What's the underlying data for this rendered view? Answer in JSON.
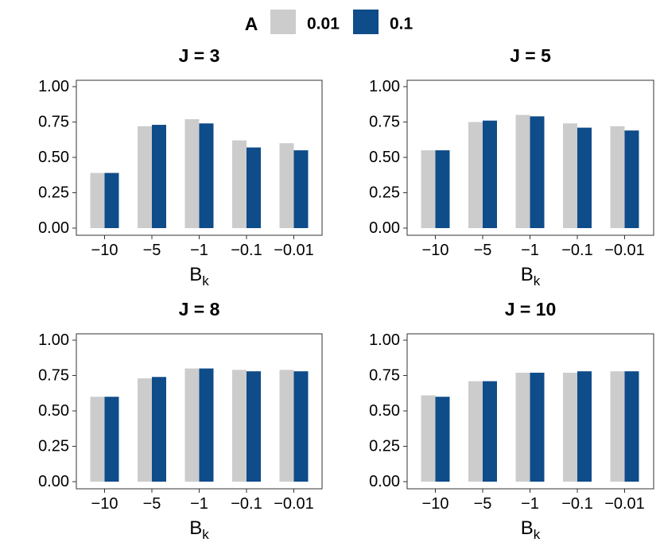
{
  "legend": {
    "title": "A",
    "items": [
      {
        "label": "0.01",
        "color": "#cccccc"
      },
      {
        "label": "0.1",
        "color": "#0f4c8a"
      }
    ],
    "placement": "top"
  },
  "chart_data": [
    {
      "type": "bar",
      "title": "J = 3",
      "categories": [
        "−10",
        "−5",
        "−1",
        "−0.1",
        "−0.01"
      ],
      "xlabel": "B",
      "xlabel_sub": "k",
      "ylabel": "",
      "ylim": [
        0,
        1
      ],
      "yticks": [
        "0.00",
        "0.25",
        "0.50",
        "0.75",
        "1.00"
      ],
      "series": [
        {
          "name": "0.01",
          "values": [
            0.39,
            0.72,
            0.77,
            0.62,
            0.6
          ]
        },
        {
          "name": "0.1",
          "values": [
            0.39,
            0.73,
            0.74,
            0.57,
            0.55
          ]
        }
      ],
      "grid": false
    },
    {
      "type": "bar",
      "title": "J = 5",
      "categories": [
        "−10",
        "−5",
        "−1",
        "−0.1",
        "−0.01"
      ],
      "xlabel": "B",
      "xlabel_sub": "k",
      "ylabel": "",
      "ylim": [
        0,
        1
      ],
      "yticks": [
        "0.00",
        "0.25",
        "0.50",
        "0.75",
        "1.00"
      ],
      "series": [
        {
          "name": "0.01",
          "values": [
            0.55,
            0.75,
            0.8,
            0.74,
            0.72
          ]
        },
        {
          "name": "0.1",
          "values": [
            0.55,
            0.76,
            0.79,
            0.71,
            0.69
          ]
        }
      ],
      "grid": false
    },
    {
      "type": "bar",
      "title": "J = 8",
      "categories": [
        "−10",
        "−5",
        "−1",
        "−0.1",
        "−0.01"
      ],
      "xlabel": "B",
      "xlabel_sub": "k",
      "ylabel": "",
      "ylim": [
        0,
        1
      ],
      "yticks": [
        "0.00",
        "0.25",
        "0.50",
        "0.75",
        "1.00"
      ],
      "series": [
        {
          "name": "0.01",
          "values": [
            0.6,
            0.73,
            0.8,
            0.79,
            0.79
          ]
        },
        {
          "name": "0.1",
          "values": [
            0.6,
            0.74,
            0.8,
            0.78,
            0.78
          ]
        }
      ],
      "grid": false
    },
    {
      "type": "bar",
      "title": "J = 10",
      "categories": [
        "−10",
        "−5",
        "−1",
        "−0.1",
        "−0.01"
      ],
      "xlabel": "B",
      "xlabel_sub": "k",
      "ylabel": "",
      "ylim": [
        0,
        1
      ],
      "yticks": [
        "0.00",
        "0.25",
        "0.50",
        "0.75",
        "1.00"
      ],
      "series": [
        {
          "name": "0.01",
          "values": [
            0.61,
            0.71,
            0.77,
            0.77,
            0.78
          ]
        },
        {
          "name": "0.1",
          "values": [
            0.6,
            0.71,
            0.77,
            0.78,
            0.78
          ]
        }
      ],
      "grid": false
    }
  ]
}
